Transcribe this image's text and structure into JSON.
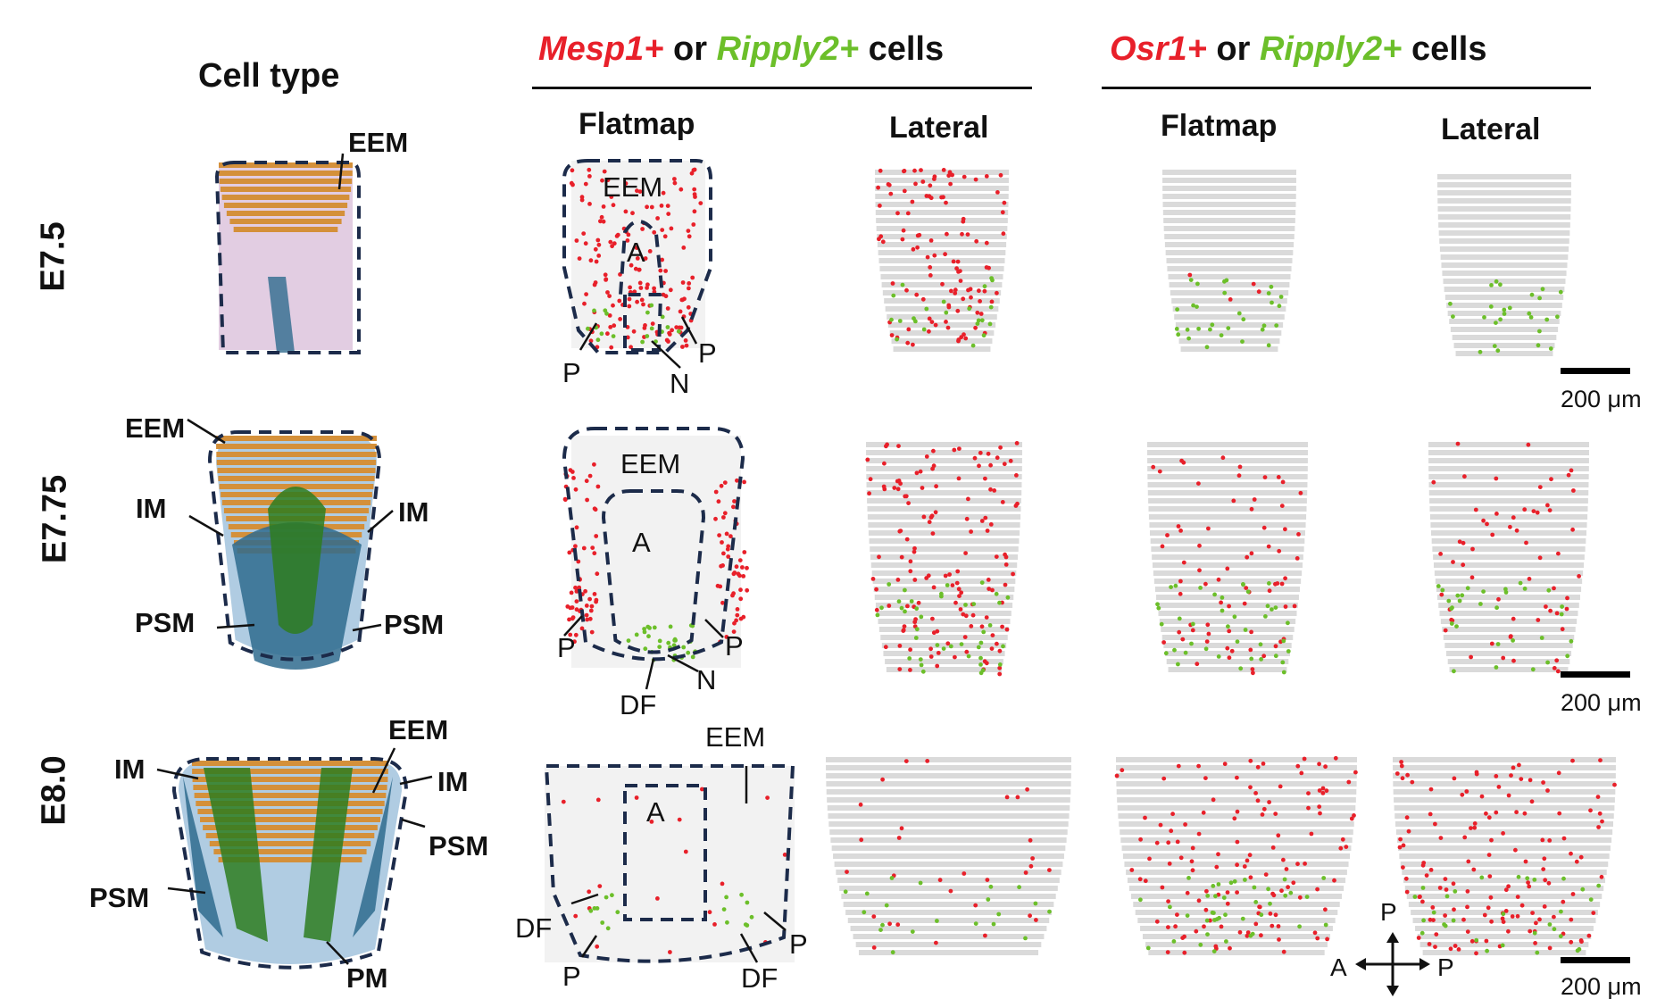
{
  "header": {
    "celltype": "Cell type",
    "group1": {
      "gene_a": "Mesp1+",
      "word_or": "or",
      "gene_b": "Ripply2+",
      "word_cells": "cells"
    },
    "group2": {
      "gene_a": "Osr1+",
      "word_or": "or",
      "gene_b": "Ripply2+",
      "word_cells": "cells"
    },
    "flatmap": "Flatmap",
    "lateral": "Lateral"
  },
  "stages": [
    "E7.5",
    "E7.75",
    "E8.0"
  ],
  "labels": {
    "EEM": "EEM",
    "IM": "IM",
    "PSM": "PSM",
    "PM": "PM",
    "A": "A",
    "P": "P",
    "N": "N",
    "DF": "DF"
  },
  "scalebar": "200 μm",
  "compass": {
    "top": "P",
    "left": "A",
    "right": "P"
  },
  "colors": {
    "mesp": "#e8202a",
    "ripply": "#6cbf2a",
    "background_cells": "#d9d9d9",
    "outline": "#1c2b4a",
    "eem": "#d4903a",
    "pm": "#2e7d20",
    "psm": "#2f6b8e",
    "im": "#8fb6d6",
    "amnion": "#d8bcd8"
  }
}
